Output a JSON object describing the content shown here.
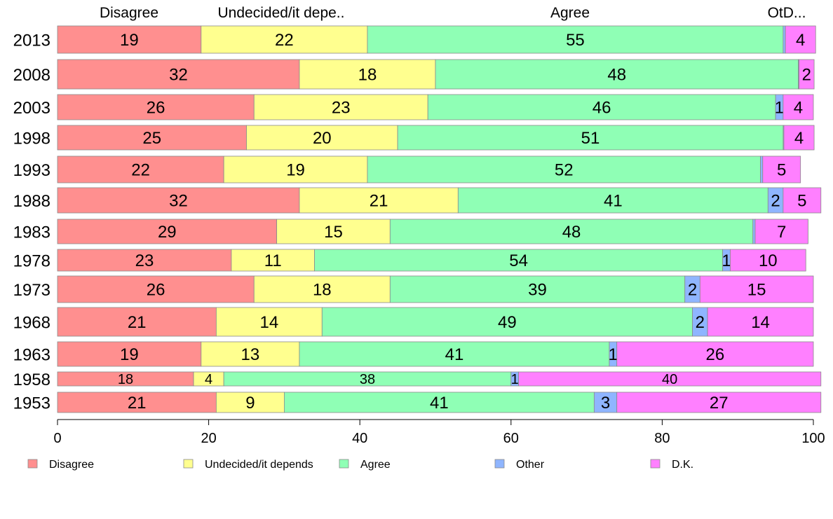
{
  "chart_data": {
    "type": "bar",
    "orientation": "horizontal",
    "stacked": true,
    "categories": [
      "2013",
      "2008",
      "2003",
      "1998",
      "1993",
      "1988",
      "1983",
      "1978",
      "1973",
      "1968",
      "1963",
      "1958",
      "1953"
    ],
    "header_labels": [
      "Disagree",
      "Undecided/it depe..",
      "Agree",
      "OtD..."
    ],
    "series": [
      {
        "name": "Disagree",
        "color": "#ff8f8f",
        "values": [
          19,
          32,
          26,
          25,
          22,
          32,
          29,
          23,
          26,
          21,
          19,
          18,
          21
        ]
      },
      {
        "name": "Undecided/it depends",
        "color": "#ffff8f",
        "values": [
          22,
          18,
          23,
          20,
          19,
          21,
          15,
          11,
          18,
          14,
          13,
          4,
          9
        ]
      },
      {
        "name": "Agree",
        "color": "#8fffb5",
        "values": [
          55,
          48,
          46,
          51,
          52,
          41,
          48,
          54,
          39,
          49,
          41,
          38,
          41
        ]
      },
      {
        "name": "Other",
        "color": "#8fb5ff",
        "values": [
          0.3,
          0.1,
          1,
          0.1,
          0.3,
          2,
          0.3,
          1,
          2,
          2,
          1,
          1,
          3
        ]
      },
      {
        "name": "D.K.",
        "color": "#ff80ff",
        "values": [
          4,
          2,
          4,
          4,
          5,
          5,
          7,
          10,
          15,
          14,
          26,
          40,
          27
        ]
      }
    ],
    "labels": [
      [
        "19",
        "22",
        "55",
        "",
        "4"
      ],
      [
        "32",
        "18",
        "48",
        "",
        "2"
      ],
      [
        "26",
        "23",
        "46",
        "1",
        "4"
      ],
      [
        "25",
        "20",
        "51",
        "",
        "4"
      ],
      [
        "22",
        "19",
        "52",
        "",
        "5"
      ],
      [
        "32",
        "21",
        "41",
        "2",
        "5"
      ],
      [
        "29",
        "15",
        "48",
        "",
        "7"
      ],
      [
        "23",
        "11",
        "54",
        "1",
        "10"
      ],
      [
        "26",
        "18",
        "39",
        "2",
        "15"
      ],
      [
        "21",
        "14",
        "49",
        "2",
        "14"
      ],
      [
        "19",
        "13",
        "41",
        "1",
        "26"
      ],
      [
        "18",
        "4",
        "38",
        "1",
        "40"
      ],
      [
        "21",
        "9",
        "41",
        "3",
        "27"
      ]
    ],
    "xlim": [
      0,
      100
    ],
    "xticks": [
      0,
      20,
      40,
      60,
      80,
      100
    ],
    "grid": false,
    "legend_position": "bottom"
  }
}
